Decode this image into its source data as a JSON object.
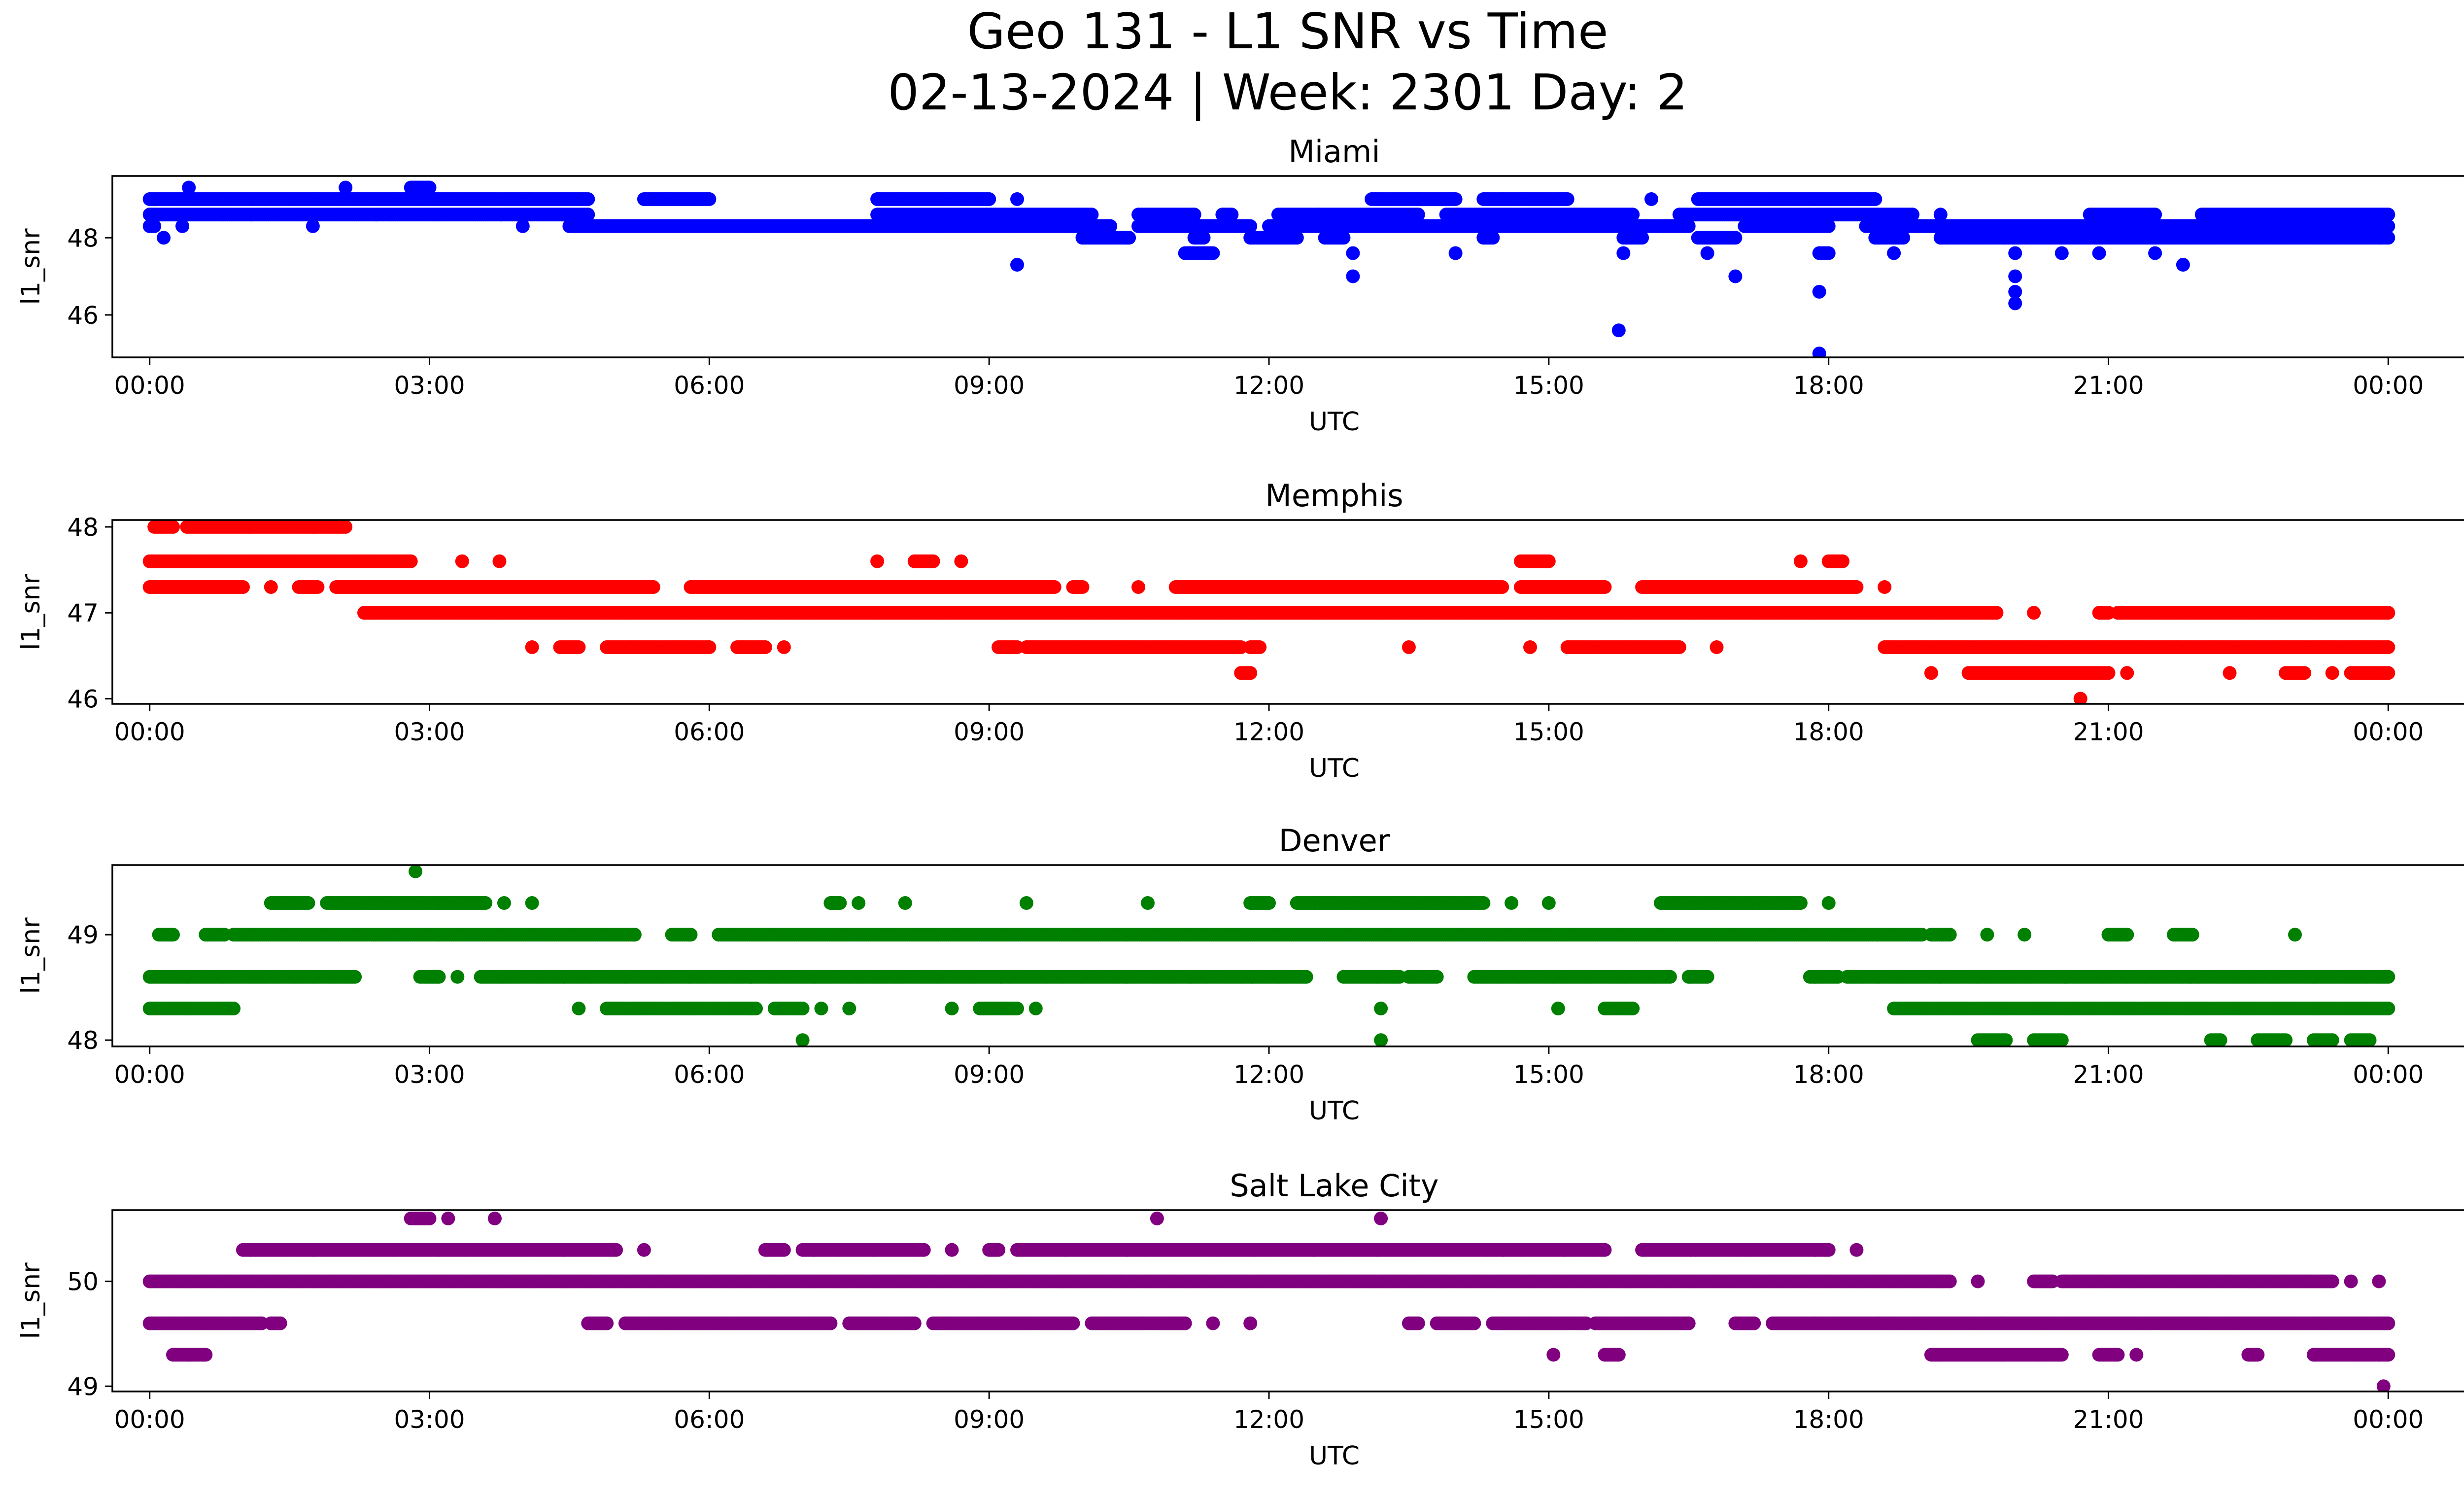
{
  "figure": {
    "title_line1": "Geo 131 - L1 SNR vs Time",
    "title_line2": "02-13-2024 | Week: 2301 Day: 2"
  },
  "chart_data": [
    {
      "type": "scatter",
      "title": "Miami",
      "xlabel": "UTC",
      "ylabel": "l1_snr",
      "color": "#0000ff",
      "x_unit": "hours UTC",
      "xlim": [
        -0.4,
        25.8
      ],
      "ylim": [
        44.9,
        49.6
      ],
      "x_ticks": [
        0,
        3,
        6,
        9,
        12,
        15,
        18,
        21,
        24
      ],
      "x_tick_labels": [
        "00:00",
        "03:00",
        "06:00",
        "09:00",
        "12:00",
        "15:00",
        "18:00",
        "21:00",
        "00:00"
      ],
      "y_ticks": [
        46,
        48
      ],
      "y_tick_labels": [
        "46",
        "48"
      ],
      "bands": [
        {
          "y": 49.3,
          "segments": [
            [
              0.42,
              0.42
            ],
            [
              2.1,
              2.1
            ],
            [
              2.8,
              3.0
            ]
          ]
        },
        {
          "y": 49.0,
          "segments": [
            [
              0.0,
              4.7
            ],
            [
              5.3,
              6.0
            ],
            [
              7.8,
              9.0
            ],
            [
              9.3,
              9.3
            ],
            [
              13.1,
              14.0
            ],
            [
              14.3,
              15.2
            ],
            [
              16.1,
              16.1
            ],
            [
              16.6,
              18.5
            ]
          ]
        },
        {
          "y": 48.6,
          "segments": [
            [
              0.0,
              4.7
            ],
            [
              7.8,
              10.1
            ],
            [
              10.6,
              11.2
            ],
            [
              11.5,
              11.6
            ],
            [
              12.1,
              13.6
            ],
            [
              13.9,
              15.9
            ],
            [
              16.4,
              18.9
            ],
            [
              19.2,
              19.2
            ],
            [
              20.8,
              21.5
            ],
            [
              22.0,
              24.0
            ]
          ]
        },
        {
          "y": 48.3,
          "segments": [
            [
              0.0,
              0.05
            ],
            [
              0.35,
              0.35
            ],
            [
              1.75,
              1.75
            ],
            [
              4.0,
              4.0
            ],
            [
              4.5,
              10.3
            ],
            [
              10.6,
              11.8
            ],
            [
              12.0,
              16.5
            ],
            [
              17.1,
              18.0
            ],
            [
              18.4,
              24.0
            ]
          ]
        },
        {
          "y": 48.0,
          "segments": [
            [
              0.15,
              0.15
            ],
            [
              10.0,
              10.5
            ],
            [
              11.2,
              11.3
            ],
            [
              11.8,
              12.3
            ],
            [
              12.6,
              12.8
            ],
            [
              14.3,
              14.4
            ],
            [
              15.8,
              16.0
            ],
            [
              16.6,
              17.0
            ],
            [
              18.5,
              18.8
            ],
            [
              19.2,
              24.0
            ]
          ]
        },
        {
          "y": 47.6,
          "segments": [
            [
              11.1,
              11.4
            ],
            [
              12.9,
              12.9
            ],
            [
              14.0,
              14.0
            ],
            [
              15.8,
              15.8
            ],
            [
              16.7,
              16.7
            ],
            [
              17.9,
              18.0
            ],
            [
              18.7,
              18.7
            ],
            [
              20.0,
              20.0
            ],
            [
              20.5,
              20.5
            ],
            [
              20.9,
              20.9
            ],
            [
              21.5,
              21.5
            ]
          ]
        },
        {
          "y": 47.3,
          "segments": [
            [
              9.3,
              9.3
            ],
            [
              21.8,
              21.8
            ]
          ]
        },
        {
          "y": 47.0,
          "segments": [
            [
              12.9,
              12.9
            ],
            [
              17.0,
              17.0
            ],
            [
              20.0,
              20.0
            ]
          ]
        },
        {
          "y": 46.6,
          "segments": [
            [
              17.9,
              17.9
            ],
            [
              20.0,
              20.0
            ]
          ]
        },
        {
          "y": 46.3,
          "segments": [
            [
              20.0,
              20.0
            ]
          ]
        },
        {
          "y": 45.6,
          "segments": [
            [
              15.75,
              15.75
            ]
          ]
        },
        {
          "y": 45.0,
          "segments": [
            [
              17.9,
              17.9
            ]
          ]
        }
      ]
    },
    {
      "type": "scatter",
      "title": "Memphis",
      "xlabel": "UTC",
      "ylabel": "l1_snr",
      "color": "#ff0000",
      "x_unit": "hours UTC",
      "xlim": [
        -0.4,
        25.8
      ],
      "ylim": [
        45.94,
        48.08
      ],
      "x_ticks": [
        0,
        3,
        6,
        9,
        12,
        15,
        18,
        21,
        24
      ],
      "x_tick_labels": [
        "00:00",
        "03:00",
        "06:00",
        "09:00",
        "12:00",
        "15:00",
        "18:00",
        "21:00",
        "00:00"
      ],
      "y_ticks": [
        46,
        47,
        48
      ],
      "y_tick_labels": [
        "46",
        "47",
        "48"
      ],
      "bands": [
        {
          "y": 48.0,
          "segments": [
            [
              0.05,
              0.25
            ],
            [
              0.4,
              2.1
            ]
          ]
        },
        {
          "y": 47.6,
          "segments": [
            [
              0.0,
              2.8
            ],
            [
              3.35,
              3.35
            ],
            [
              3.75,
              3.75
            ],
            [
              7.8,
              7.8
            ],
            [
              8.2,
              8.4
            ],
            [
              8.7,
              8.7
            ],
            [
              14.7,
              15.0
            ],
            [
              17.7,
              17.7
            ],
            [
              18.0,
              18.15
            ]
          ]
        },
        {
          "y": 47.3,
          "segments": [
            [
              0.0,
              1.0
            ],
            [
              1.3,
              1.3
            ],
            [
              1.6,
              1.8
            ],
            [
              2.0,
              5.4
            ],
            [
              5.8,
              9.7
            ],
            [
              9.9,
              10.0
            ],
            [
              10.6,
              10.6
            ],
            [
              11.0,
              14.5
            ],
            [
              14.7,
              15.6
            ],
            [
              16.0,
              18.3
            ],
            [
              18.6,
              18.6
            ]
          ]
        },
        {
          "y": 47.0,
          "segments": [
            [
              2.3,
              19.8
            ],
            [
              20.2,
              20.2
            ],
            [
              20.9,
              21.0
            ],
            [
              21.1,
              24.0
            ]
          ]
        },
        {
          "y": 46.6,
          "segments": [
            [
              4.1,
              4.1
            ],
            [
              4.4,
              4.6
            ],
            [
              4.9,
              6.0
            ],
            [
              6.3,
              6.6
            ],
            [
              6.8,
              6.8
            ],
            [
              9.1,
              9.3
            ],
            [
              9.4,
              11.7
            ],
            [
              11.8,
              11.9
            ],
            [
              13.5,
              13.5
            ],
            [
              14.8,
              14.8
            ],
            [
              15.2,
              16.4
            ],
            [
              16.8,
              16.8
            ],
            [
              18.6,
              24.0
            ]
          ]
        },
        {
          "y": 46.3,
          "segments": [
            [
              11.7,
              11.8
            ],
            [
              19.1,
              19.1
            ],
            [
              19.5,
              21.0
            ],
            [
              21.2,
              21.2
            ],
            [
              22.3,
              22.3
            ],
            [
              22.9,
              23.1
            ],
            [
              23.4,
              23.4
            ],
            [
              23.6,
              24.0
            ]
          ]
        },
        {
          "y": 46.0,
          "segments": [
            [
              20.7,
              20.7
            ]
          ]
        }
      ]
    },
    {
      "type": "scatter",
      "title": "Denver",
      "xlabel": "UTC",
      "ylabel": "l1_snr",
      "color": "#008000",
      "x_unit": "hours UTC",
      "xlim": [
        -0.4,
        25.8
      ],
      "ylim": [
        47.94,
        49.66
      ],
      "x_ticks": [
        0,
        3,
        6,
        9,
        12,
        15,
        18,
        21,
        24
      ],
      "x_tick_labels": [
        "00:00",
        "03:00",
        "06:00",
        "09:00",
        "12:00",
        "15:00",
        "18:00",
        "21:00",
        "00:00"
      ],
      "y_ticks": [
        48,
        49
      ],
      "y_tick_labels": [
        "48",
        "49"
      ],
      "bands": [
        {
          "y": 49.6,
          "segments": [
            [
              2.85,
              2.85
            ]
          ]
        },
        {
          "y": 49.3,
          "segments": [
            [
              1.3,
              1.7
            ],
            [
              1.9,
              3.6
            ],
            [
              3.8,
              3.8
            ],
            [
              4.1,
              4.1
            ],
            [
              7.3,
              7.4
            ],
            [
              7.6,
              7.6
            ],
            [
              8.1,
              8.1
            ],
            [
              9.4,
              9.4
            ],
            [
              10.7,
              10.7
            ],
            [
              11.8,
              12.0
            ],
            [
              12.3,
              14.3
            ],
            [
              14.6,
              14.6
            ],
            [
              15.0,
              15.0
            ],
            [
              16.2,
              17.7
            ],
            [
              18.0,
              18.0
            ]
          ]
        },
        {
          "y": 49.0,
          "segments": [
            [
              0.1,
              0.25
            ],
            [
              0.6,
              0.8
            ],
            [
              0.9,
              5.2
            ],
            [
              5.6,
              5.8
            ],
            [
              6.1,
              19.0
            ],
            [
              19.1,
              19.3
            ],
            [
              19.7,
              19.7
            ],
            [
              20.1,
              20.1
            ],
            [
              21.0,
              21.2
            ],
            [
              21.7,
              21.9
            ],
            [
              23.0,
              23.0
            ]
          ]
        },
        {
          "y": 48.6,
          "segments": [
            [
              0.0,
              2.2
            ],
            [
              2.9,
              3.1
            ],
            [
              3.3,
              3.3
            ],
            [
              3.55,
              12.4
            ],
            [
              12.8,
              13.4
            ],
            [
              13.5,
              13.8
            ],
            [
              14.2,
              16.3
            ],
            [
              16.5,
              16.7
            ],
            [
              17.8,
              18.1
            ],
            [
              18.2,
              24.0
            ]
          ]
        },
        {
          "y": 48.3,
          "segments": [
            [
              0.0,
              0.9
            ],
            [
              4.6,
              4.6
            ],
            [
              4.9,
              6.5
            ],
            [
              6.7,
              7.0
            ],
            [
              7.2,
              7.2
            ],
            [
              7.5,
              7.5
            ],
            [
              8.6,
              8.6
            ],
            [
              8.9,
              9.3
            ],
            [
              9.5,
              9.5
            ],
            [
              13.2,
              13.2
            ],
            [
              15.1,
              15.1
            ],
            [
              15.6,
              15.9
            ],
            [
              18.7,
              24.0
            ]
          ]
        },
        {
          "y": 48.0,
          "segments": [
            [
              7.0,
              7.0
            ],
            [
              13.2,
              13.2
            ],
            [
              19.6,
              19.9
            ],
            [
              20.2,
              20.5
            ],
            [
              22.1,
              22.2
            ],
            [
              22.6,
              22.9
            ],
            [
              23.2,
              23.4
            ],
            [
              23.6,
              23.8
            ]
          ]
        }
      ]
    },
    {
      "type": "scatter",
      "title": "Salt Lake City",
      "xlabel": "UTC",
      "ylabel": "l1_snr",
      "color": "#800080",
      "x_unit": "hours UTC",
      "xlim": [
        -0.4,
        25.8
      ],
      "ylim": [
        48.95,
        50.68
      ],
      "x_ticks": [
        0,
        3,
        6,
        9,
        12,
        15,
        18,
        21,
        24
      ],
      "x_tick_labels": [
        "00:00",
        "03:00",
        "06:00",
        "09:00",
        "12:00",
        "15:00",
        "18:00",
        "21:00",
        "00:00"
      ],
      "y_ticks": [
        49,
        50
      ],
      "y_tick_labels": [
        "49",
        "50"
      ],
      "bands": [
        {
          "y": 50.6,
          "segments": [
            [
              2.8,
              3.0
            ],
            [
              3.2,
              3.2
            ],
            [
              3.7,
              3.7
            ],
            [
              10.8,
              10.8
            ],
            [
              13.2,
              13.2
            ]
          ]
        },
        {
          "y": 50.3,
          "segments": [
            [
              1.0,
              5.0
            ],
            [
              5.3,
              5.3
            ],
            [
              6.6,
              6.8
            ],
            [
              7.0,
              8.3
            ],
            [
              8.6,
              8.6
            ],
            [
              9.0,
              9.1
            ],
            [
              9.3,
              15.6
            ],
            [
              16.0,
              18.0
            ],
            [
              18.3,
              18.3
            ]
          ]
        },
        {
          "y": 50.0,
          "segments": [
            [
              0.0,
              19.3
            ],
            [
              19.6,
              19.6
            ],
            [
              20.2,
              20.4
            ],
            [
              20.5,
              23.4
            ],
            [
              23.6,
              23.6
            ],
            [
              23.9,
              23.9
            ]
          ]
        },
        {
          "y": 49.6,
          "segments": [
            [
              0.0,
              1.2
            ],
            [
              1.3,
              1.4
            ],
            [
              4.7,
              4.9
            ],
            [
              5.1,
              7.3
            ],
            [
              7.5,
              8.2
            ],
            [
              8.4,
              9.9
            ],
            [
              10.1,
              11.1
            ],
            [
              11.4,
              11.4
            ],
            [
              11.8,
              11.8
            ],
            [
              13.5,
              13.6
            ],
            [
              13.8,
              14.2
            ],
            [
              14.4,
              15.4
            ],
            [
              15.5,
              16.5
            ],
            [
              17.0,
              17.2
            ],
            [
              17.4,
              24.0
            ]
          ]
        },
        {
          "y": 49.3,
          "segments": [
            [
              0.25,
              0.6
            ],
            [
              15.05,
              15.05
            ],
            [
              15.6,
              15.75
            ],
            [
              19.1,
              20.5
            ],
            [
              20.9,
              21.1
            ],
            [
              21.3,
              21.3
            ],
            [
              22.5,
              22.6
            ],
            [
              23.2,
              24.0
            ]
          ]
        },
        {
          "y": 49.0,
          "segments": [
            [
              23.95,
              23.95
            ]
          ]
        }
      ]
    }
  ]
}
